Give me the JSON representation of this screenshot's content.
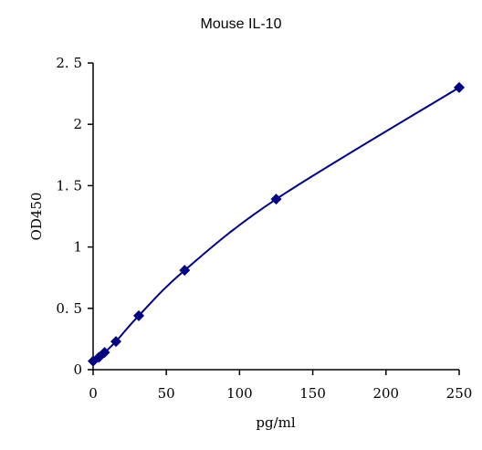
{
  "chart_data": {
    "type": "scatter",
    "title": "Mouse IL-10",
    "xlabel": "pg/ml",
    "ylabel": "OD450",
    "xlim": [
      0,
      250
    ],
    "ylim": [
      0,
      2.5
    ],
    "xticks": [
      0,
      50,
      100,
      150,
      200,
      250
    ],
    "xtick_labels": [
      "0",
      "50",
      "100",
      "150",
      "200",
      "250"
    ],
    "yticks": [
      0,
      0.5,
      1,
      1.5,
      2,
      2.5
    ],
    "ytick_labels": [
      "0",
      "0. 5",
      "1",
      "1. 5",
      "2",
      "2. 5"
    ],
    "grid": false,
    "legend": "none",
    "series": [
      {
        "color": "#000080",
        "marker": "diamond",
        "line": "smooth",
        "x": [
          0,
          3.9,
          7.8,
          15.6,
          31.2,
          62.5,
          125,
          250
        ],
        "y": [
          0.07,
          0.1,
          0.14,
          0.23,
          0.44,
          0.81,
          1.39,
          2.3
        ]
      }
    ]
  }
}
